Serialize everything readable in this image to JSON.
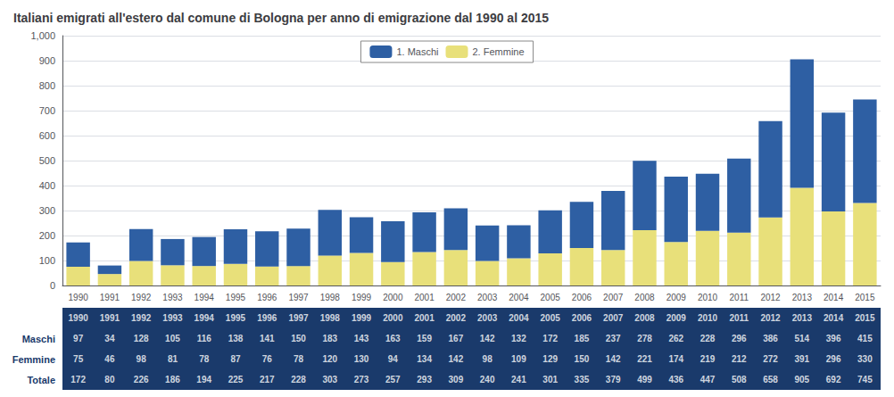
{
  "chart_data": {
    "type": "bar",
    "title": "Italiani emigrati all'estero dal comune di Bologna per anno di emigrazione dal 1990 al 2015",
    "categories": [
      1990,
      1991,
      1992,
      1993,
      1994,
      1995,
      1996,
      1997,
      1998,
      1999,
      2000,
      2001,
      2002,
      2003,
      2004,
      2005,
      2006,
      2007,
      2008,
      2009,
      2010,
      2011,
      2012,
      2013,
      2014,
      2015
    ],
    "series": [
      {
        "name": "2. Femmine",
        "color": "#E8E07A",
        "values": [
          75,
          46,
          98,
          81,
          78,
          87,
          76,
          78,
          120,
          130,
          94,
          134,
          142,
          98,
          109,
          129,
          150,
          142,
          221,
          174,
          219,
          212,
          272,
          391,
          296,
          330
        ]
      },
      {
        "name": "1. Maschi",
        "color": "#2E5FA3",
        "values": [
          97,
          34,
          128,
          105,
          116,
          138,
          141,
          150,
          183,
          143,
          163,
          159,
          167,
          142,
          132,
          172,
          185,
          237,
          278,
          262,
          228,
          296,
          386,
          514,
          396,
          415
        ]
      }
    ],
    "stacked": true,
    "ylim": [
      0,
      1000
    ],
    "yticks": [
      0,
      100,
      200,
      300,
      400,
      500,
      600,
      700,
      800,
      900,
      1000
    ],
    "grid": true,
    "legend": "upper center",
    "table": {
      "color": "#1A3A6B",
      "rows": [
        {
          "label": "Maschi",
          "values": [
            97,
            34,
            128,
            105,
            116,
            138,
            141,
            150,
            183,
            143,
            163,
            159,
            167,
            142,
            132,
            172,
            185,
            237,
            278,
            262,
            228,
            296,
            386,
            514,
            396,
            415
          ]
        },
        {
          "label": "Femmine",
          "values": [
            75,
            46,
            98,
            81,
            78,
            87,
            76,
            78,
            120,
            130,
            94,
            134,
            142,
            98,
            109,
            129,
            150,
            142,
            221,
            174,
            219,
            212,
            272,
            391,
            296,
            330
          ]
        },
        {
          "label": "Totale",
          "values": [
            172,
            80,
            226,
            186,
            194,
            225,
            217,
            228,
            303,
            273,
            257,
            293,
            309,
            240,
            241,
            301,
            335,
            379,
            499,
            436,
            447,
            508,
            658,
            905,
            692,
            745
          ]
        }
      ]
    }
  }
}
